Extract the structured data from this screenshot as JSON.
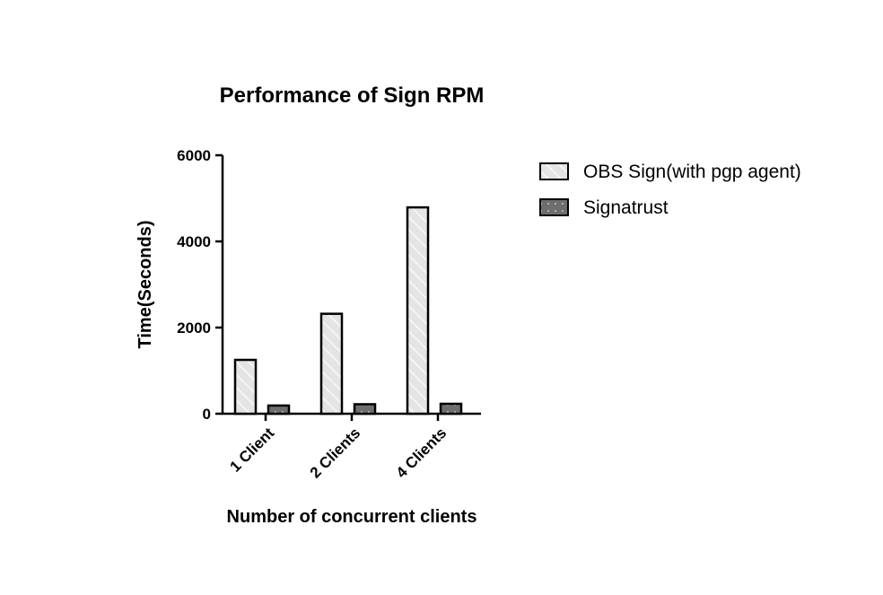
{
  "chart_data": {
    "type": "bar",
    "title": "Performance of Sign RPM",
    "xlabel": "Number of concurrent clients",
    "ylabel": "Time(Seconds)",
    "categories": [
      "1 Client",
      "2 Clients",
      "4 Clients"
    ],
    "ylim": [
      0,
      6000
    ],
    "yticks": [
      0,
      2000,
      4000,
      6000
    ],
    "grid": false,
    "legend_position": "right",
    "series": [
      {
        "name": "OBS Sign(with pgp agent)",
        "values": [
          1250,
          2320,
          4790
        ],
        "color": "#e6e6e6",
        "pattern": "diagonal-stripes"
      },
      {
        "name": "Signatrust",
        "values": [
          190,
          220,
          230
        ],
        "color": "#6e6e6e",
        "pattern": "dots"
      }
    ]
  }
}
